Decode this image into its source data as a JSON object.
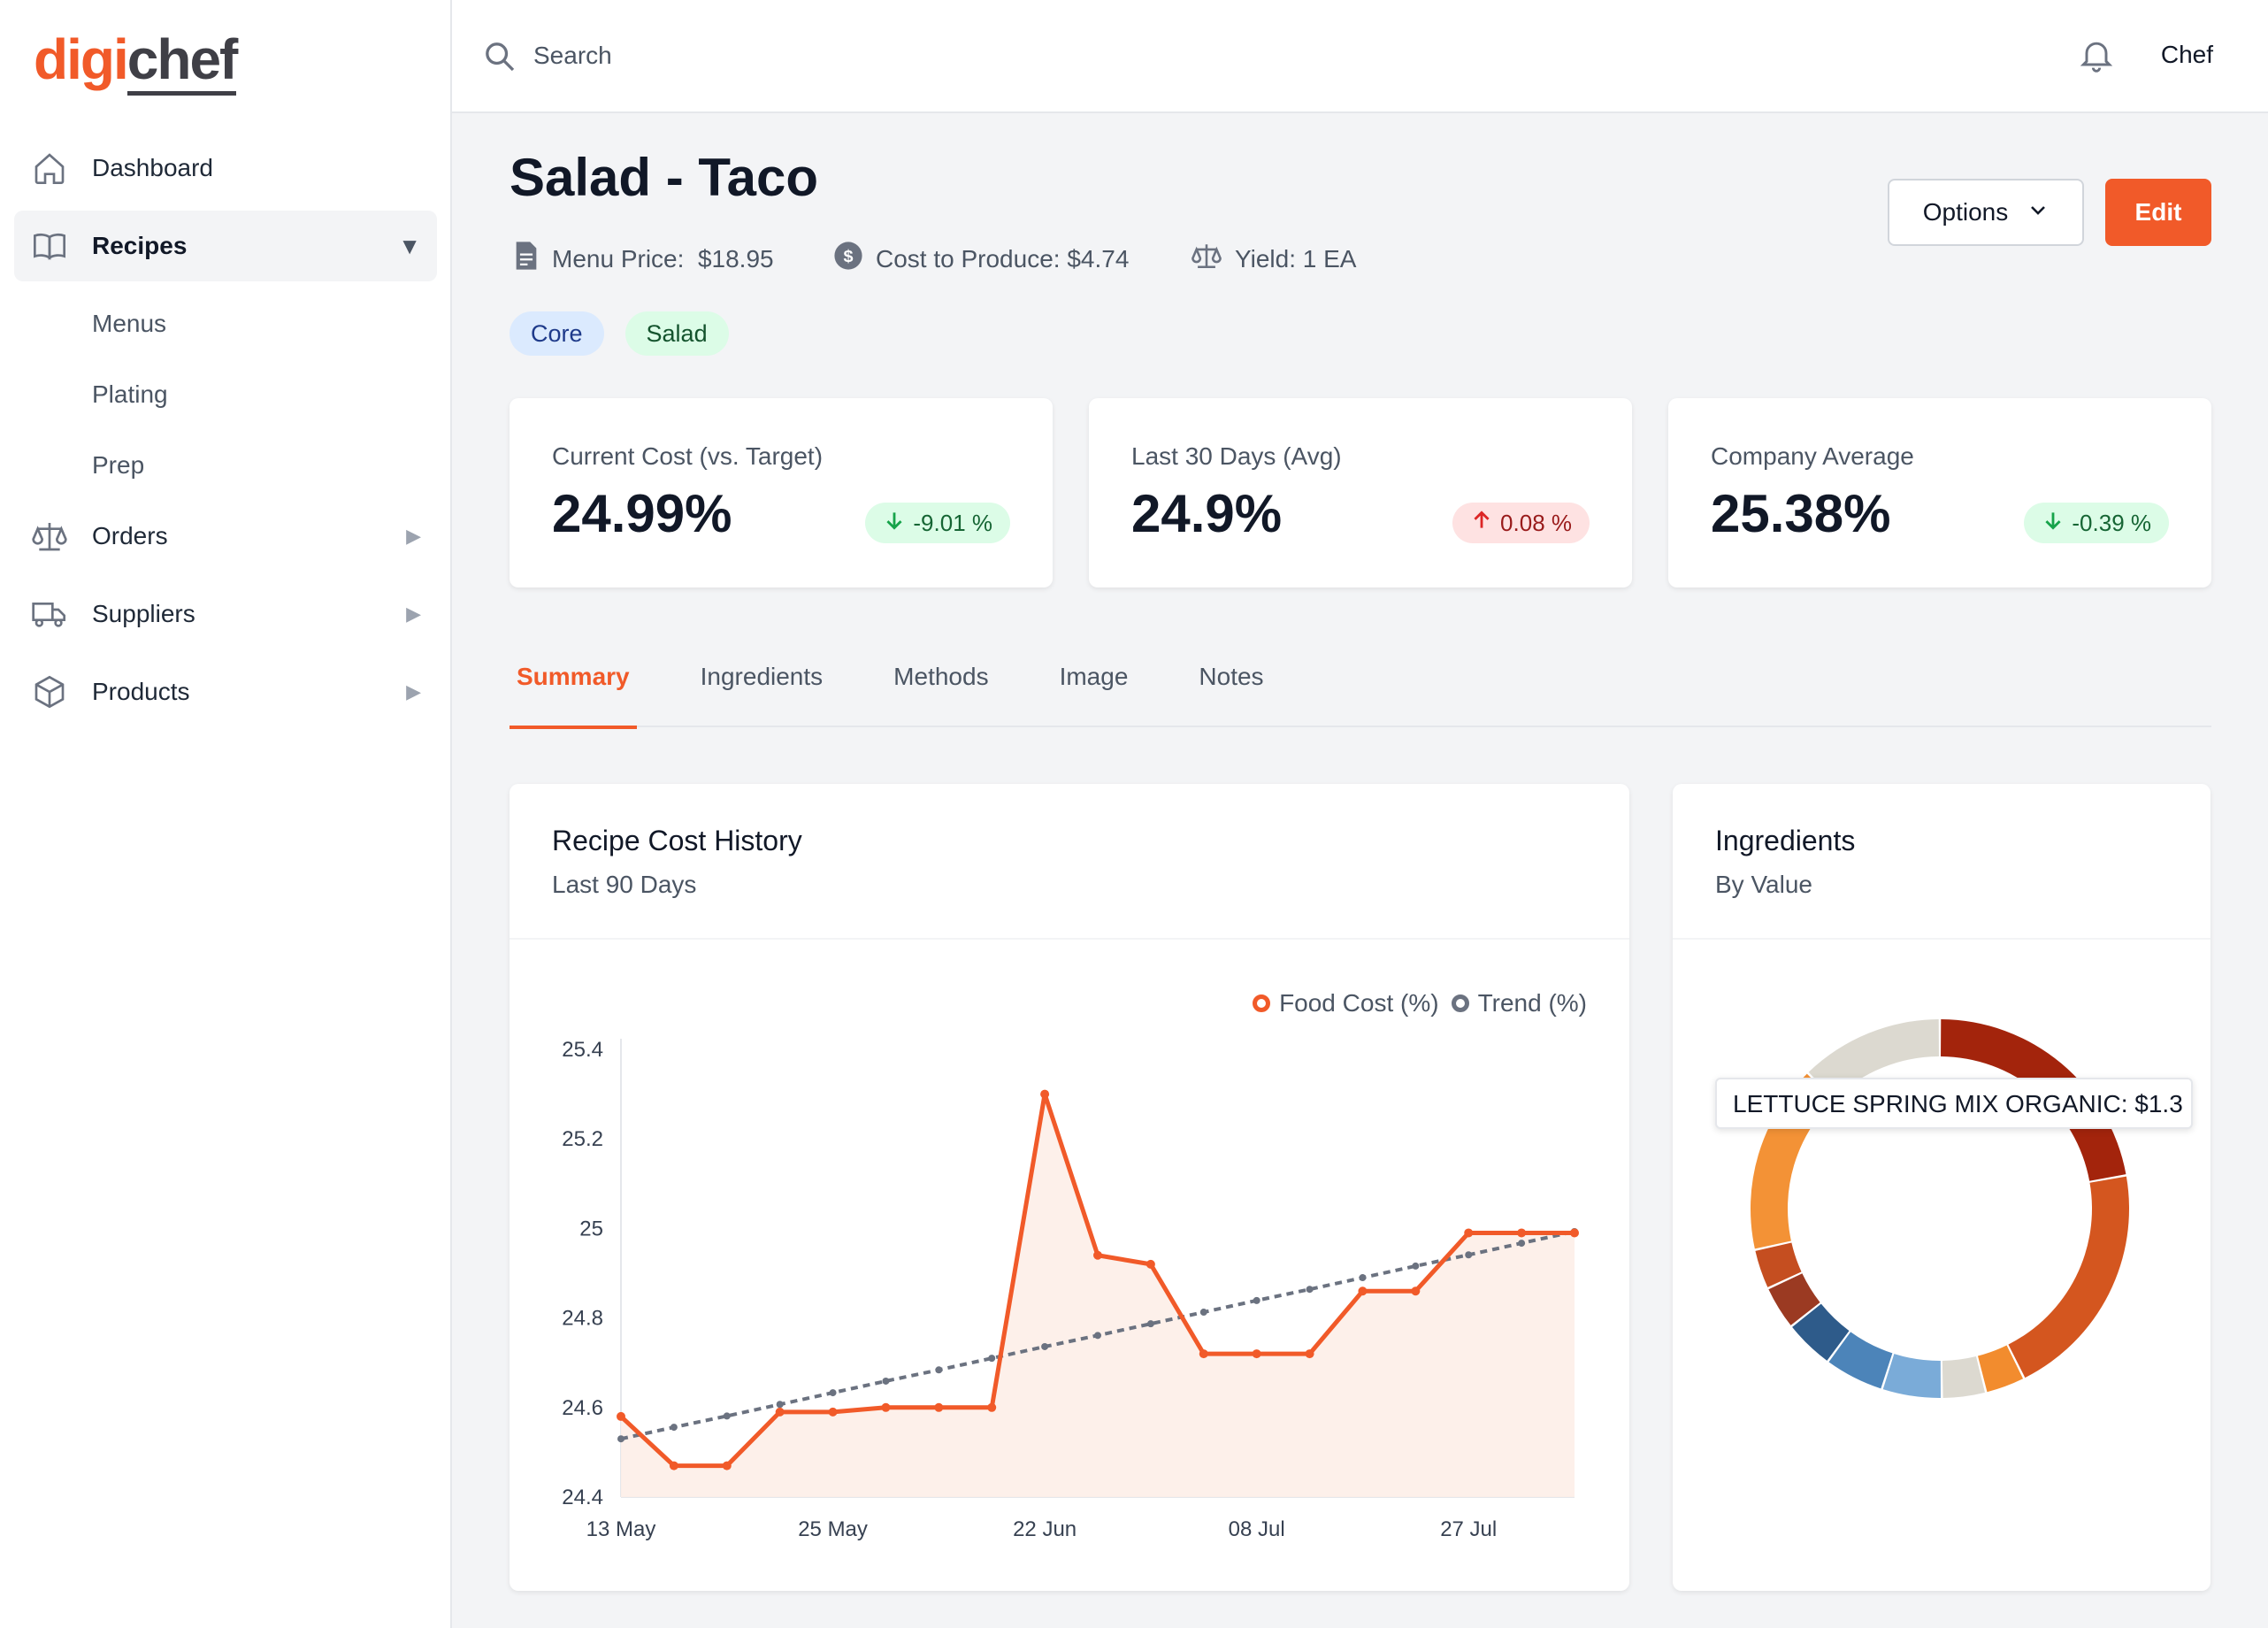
{
  "brand": {
    "logo_part1": "digi",
    "logo_part2": "chef"
  },
  "sidebar": {
    "items": [
      {
        "label": "Dashboard",
        "icon": "home-icon",
        "has_arrow": false
      },
      {
        "label": "Recipes",
        "icon": "book-icon",
        "has_arrow": true,
        "active": true,
        "arrow": "▼"
      },
      {
        "label": "Orders",
        "icon": "scale-icon",
        "has_arrow": true,
        "arrow": "▶"
      },
      {
        "label": "Suppliers",
        "icon": "truck-icon",
        "has_arrow": true,
        "arrow": "▶"
      },
      {
        "label": "Products",
        "icon": "cube-icon",
        "has_arrow": true,
        "arrow": "▶"
      }
    ],
    "recipes_sub": [
      "Menus",
      "Plating",
      "Prep"
    ]
  },
  "topbar": {
    "search_placeholder": "Search",
    "user": "Chef"
  },
  "recipe": {
    "title": "Salad - Taco",
    "menu_price_label": "Menu Price:",
    "menu_price": "$18.95",
    "cost_label": "Cost to Produce: $4.74",
    "yield_label": "Yield: 1 EA",
    "tags": [
      "Core",
      "Salad"
    ]
  },
  "actions": {
    "options": "Options",
    "edit": "Edit"
  },
  "stats": [
    {
      "label": "Current Cost (vs. Target)",
      "value": "24.99%",
      "delta": "-9.01 %",
      "direction": "down",
      "tone": "good"
    },
    {
      "label": "Last 30 Days (Avg)",
      "value": "24.9%",
      "delta": "0.08 %",
      "direction": "up",
      "tone": "bad"
    },
    {
      "label": "Company Average",
      "value": "25.38%",
      "delta": "-0.39 %",
      "direction": "down",
      "tone": "good"
    }
  ],
  "tabs": [
    "Summary",
    "Ingredients",
    "Methods",
    "Image",
    "Notes"
  ],
  "active_tab": "Summary",
  "cost_panel": {
    "title": "Recipe Cost History",
    "subtitle": "Last 90 Days"
  },
  "ingredients_panel": {
    "title": "Ingredients",
    "subtitle": "By Value",
    "tooltip": "LETTUCE SPRING MIX ORGANIC: $1.3"
  },
  "colors": {
    "accent": "#f15a29",
    "trend": "#6b7280"
  },
  "chart_data": [
    {
      "type": "line",
      "title": "Recipe Cost History",
      "subtitle": "Last 90 Days",
      "xlabel": "",
      "ylabel": "",
      "ylim": [
        24.4,
        25.4
      ],
      "yticks": [
        "25.4",
        "25.2",
        "25",
        "24.8",
        "24.6",
        "24.4"
      ],
      "xticks": [
        "13 May",
        "25 May",
        "22 Jun",
        "08 Jul",
        "27 Jul"
      ],
      "legend": "top-right",
      "series": [
        {
          "name": "Food Cost (%)",
          "color": "#f15a29",
          "fill": true,
          "values": [
            24.58,
            24.47,
            24.47,
            24.59,
            24.59,
            24.6,
            24.6,
            24.6,
            25.3,
            24.94,
            24.92,
            24.72,
            24.72,
            24.72,
            24.86,
            24.86,
            24.99,
            24.99,
            24.99
          ]
        },
        {
          "name": "Trend (%)",
          "color": "#6b7280",
          "dashed": true,
          "values": [
            24.53,
            24.556,
            24.581,
            24.607,
            24.633,
            24.659,
            24.684,
            24.71,
            24.736,
            24.761,
            24.787,
            24.813,
            24.839,
            24.864,
            24.89,
            24.916,
            24.941,
            24.967,
            24.993
          ]
        }
      ]
    },
    {
      "type": "pie",
      "title": "Ingredients",
      "subtitle": "By Value",
      "donut": true,
      "slices": [
        {
          "label": "LETTUCE SPRING MIX ORGANIC",
          "value": 1.3,
          "color": "#a3240c"
        },
        {
          "label": "",
          "value": 1.2,
          "color": "#d4561f"
        },
        {
          "label": "",
          "value": 0.2,
          "color": "#f28c2e"
        },
        {
          "label": "",
          "value": 0.22,
          "color": "#dcd9d0"
        },
        {
          "label": "",
          "value": 0.3,
          "color": "#7aabd8"
        },
        {
          "label": "",
          "value": 0.3,
          "color": "#4c84b9"
        },
        {
          "label": "",
          "value": 0.25,
          "color": "#2e5b8a"
        },
        {
          "label": "",
          "value": 0.22,
          "color": "#9b3a22"
        },
        {
          "label": "",
          "value": 0.2,
          "color": "#c54e20"
        },
        {
          "label": "",
          "value": 0.95,
          "color": "#f39236"
        },
        {
          "label": "",
          "value": 0.72,
          "color": "#dcd9d0"
        }
      ]
    }
  ]
}
